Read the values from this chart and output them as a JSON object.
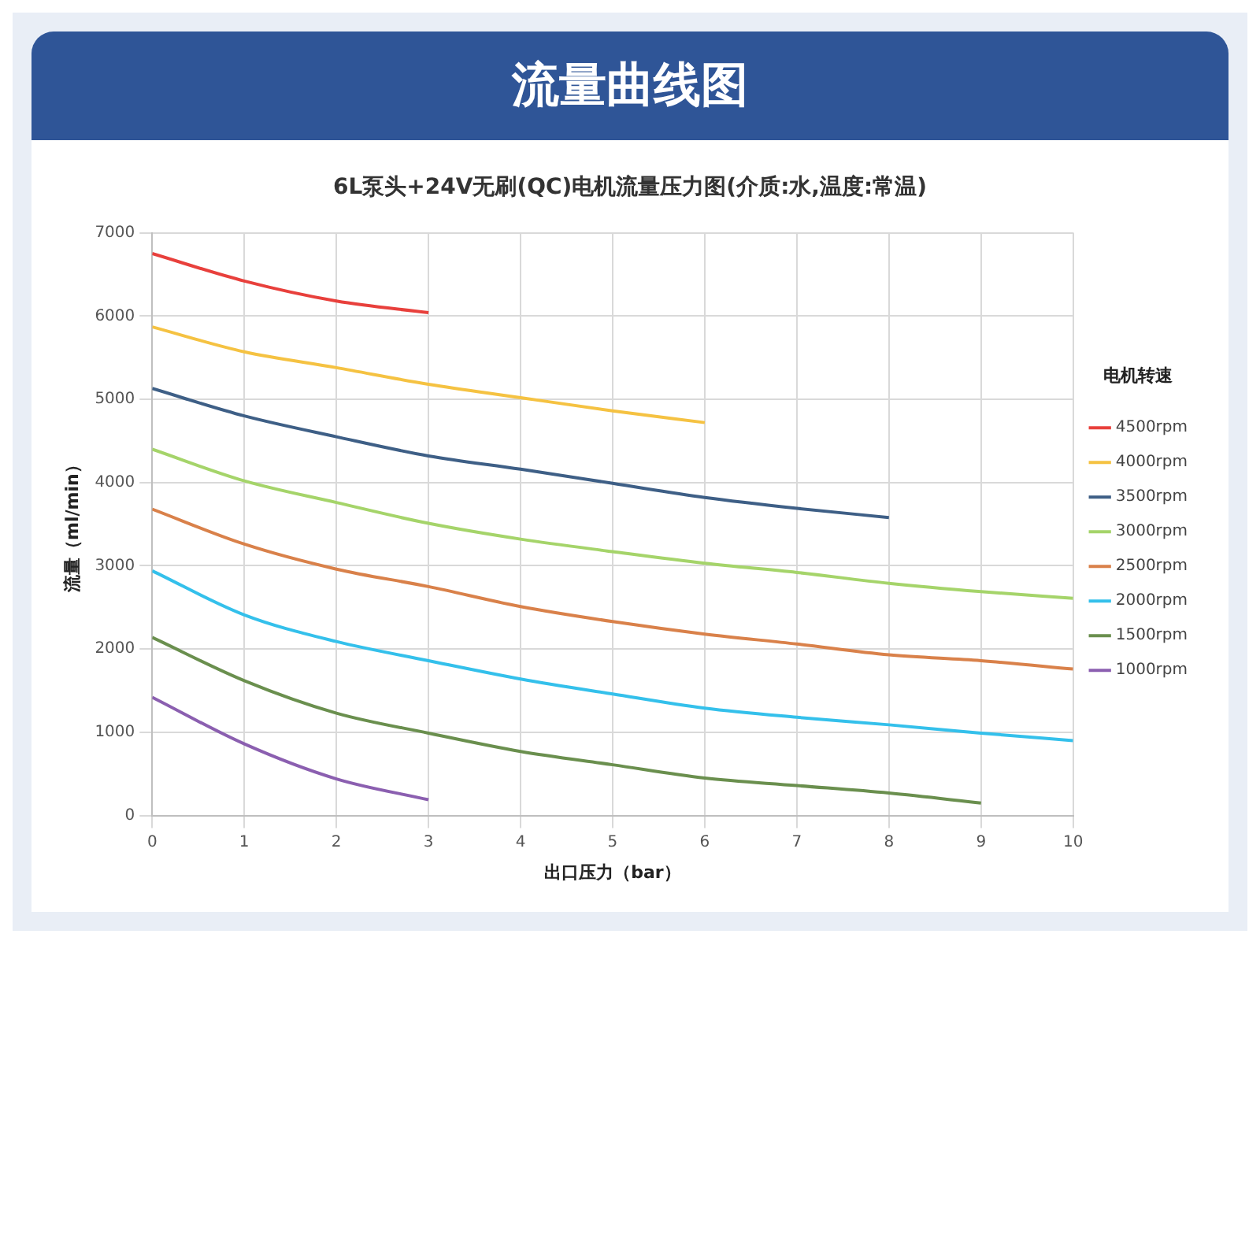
{
  "chart_data": {
    "type": "line",
    "title": "流量曲线图",
    "subtitle": "6L泵头+24V无刷(QC)电机流量压力图(介质:水,温度:常温)",
    "xlabel": "出口压力（bar）",
    "ylabel": "流量（ml/min）",
    "legend_title": "电机转速",
    "legend": "right",
    "grid": true,
    "marker": "none",
    "line_style": "solid",
    "xlim": [
      0,
      10
    ],
    "xticks": [
      0,
      1,
      2,
      3,
      4,
      5,
      6,
      7,
      8,
      9,
      10
    ],
    "ylim": [
      0,
      7000
    ],
    "yticks": [
      0,
      1000,
      2000,
      3000,
      4000,
      5000,
      6000,
      7000
    ],
    "series": [
      {
        "name": "4500rpm",
        "color": "#e8403c",
        "x": [
          0,
          1,
          2,
          3
        ],
        "values": [
          6750,
          6420,
          6180,
          6040
        ]
      },
      {
        "name": "4000rpm",
        "color": "#f5c242",
        "x": [
          0,
          1,
          2,
          3,
          4,
          5,
          6
        ],
        "values": [
          5870,
          5570,
          5380,
          5180,
          5020,
          4860,
          4720
        ]
      },
      {
        "name": "3500rpm",
        "color": "#3e5f86",
        "x": [
          0,
          1,
          2,
          3,
          4,
          5,
          6,
          7,
          8
        ],
        "values": [
          5130,
          4800,
          4550,
          4320,
          4160,
          3990,
          3820,
          3690,
          3580
        ]
      },
      {
        "name": "3000rpm",
        "color": "#a5d46a",
        "x": [
          0,
          1,
          2,
          3,
          4,
          5,
          6,
          7,
          8,
          9,
          10
        ],
        "values": [
          4400,
          4020,
          3760,
          3510,
          3320,
          3170,
          3030,
          2920,
          2790,
          2690,
          2610
        ]
      },
      {
        "name": "2500rpm",
        "color": "#d9814a",
        "x": [
          0,
          1,
          2,
          3,
          4,
          5,
          6,
          7,
          8,
          9,
          10
        ],
        "values": [
          3680,
          3260,
          2960,
          2750,
          2510,
          2330,
          2180,
          2060,
          1930,
          1860,
          1760
        ]
      },
      {
        "name": "2000rpm",
        "color": "#34c0eb",
        "x": [
          0,
          1,
          2,
          3,
          4,
          5,
          6,
          7,
          8,
          9,
          10
        ],
        "values": [
          2940,
          2410,
          2090,
          1860,
          1640,
          1460,
          1290,
          1180,
          1090,
          990,
          900
        ]
      },
      {
        "name": "1500rpm",
        "color": "#6a8f4e",
        "x": [
          0,
          1,
          2,
          3,
          4,
          5,
          6,
          7,
          8,
          9
        ],
        "values": [
          2140,
          1620,
          1230,
          990,
          770,
          610,
          450,
          360,
          270,
          150
        ]
      },
      {
        "name": "1000rpm",
        "color": "#8b5fb0",
        "x": [
          0,
          1,
          2,
          3
        ],
        "values": [
          1420,
          860,
          440,
          190
        ]
      }
    ]
  }
}
